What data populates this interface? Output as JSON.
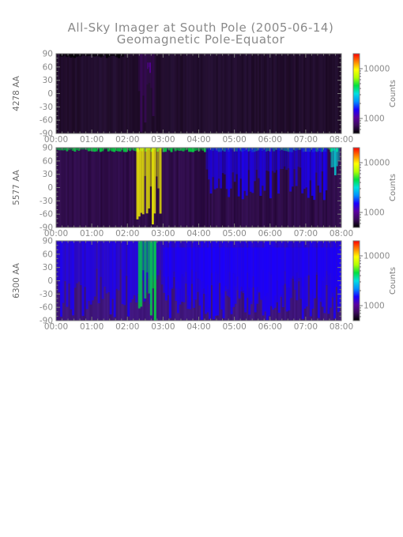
{
  "chart_data": {
    "type": "heatmap",
    "title": "All-Sky Imager at South Pole (2005-06-14)",
    "subtitle": "Geomagnetic Pole-Equator",
    "x_ticks": [
      "00:00",
      "01:00",
      "02:00",
      "03:00",
      "04:00",
      "05:00",
      "06:00",
      "07:00",
      "08:00"
    ],
    "y_ticks": [
      90,
      60,
      30,
      0,
      -30,
      -60,
      -90
    ],
    "ylim": [
      -90,
      90
    ],
    "xlim_hours": [
      0,
      8
    ],
    "colorbar": {
      "label": "Counts",
      "scale": "log",
      "ticks": [
        1000,
        10000
      ],
      "colors": [
        "#000000",
        "#3a0a5a",
        "#5a00a0",
        "#1a00ff",
        "#0090ff",
        "#00e0e0",
        "#00e040",
        "#b0ff00",
        "#ffff00",
        "#ff8000",
        "#ff0000"
      ]
    },
    "panels": [
      {
        "label": "4278 AA",
        "bg": "#1c0a24",
        "hot": "#4a2a70",
        "features": [
          {
            "t0": 2.3,
            "t1": 2.75,
            "lat0": -90,
            "lat1": 90,
            "counts": 700
          },
          {
            "t0": 2.55,
            "t1": 2.65,
            "lat0": 45,
            "lat1": 70,
            "counts": 900
          },
          {
            "t0": 0.1,
            "t1": 1.9,
            "lat0": 80,
            "lat1": 90,
            "counts": 500
          }
        ]
      },
      {
        "label": "5577 AA",
        "bg": "#26083a",
        "hot": "#6d2fb0",
        "features": [
          {
            "t0": 0.0,
            "t1": 7.9,
            "lat0": 80,
            "lat1": 90,
            "counts": 4000
          },
          {
            "t0": 2.25,
            "t1": 2.95,
            "lat0": -90,
            "lat1": 90,
            "counts": 8000
          },
          {
            "t0": 4.2,
            "t1": 7.6,
            "lat0": -30,
            "lat1": 90,
            "counts": 1500
          },
          {
            "t0": 7.7,
            "t1": 7.95,
            "lat0": 20,
            "lat1": 90,
            "counts": 3000
          }
        ]
      },
      {
        "label": "6300 AA",
        "bg": "#3a1270",
        "hot": "#6633cc",
        "features": [
          {
            "t0": 0.0,
            "t1": 8.0,
            "lat0": -90,
            "lat1": 90,
            "counts": 1500
          },
          {
            "t0": 2.3,
            "t1": 2.8,
            "lat0": -90,
            "lat1": 90,
            "counts": 4000
          },
          {
            "t0": 3.0,
            "t1": 8.0,
            "lat0": -80,
            "lat1": 75,
            "counts": 1800
          }
        ]
      }
    ]
  }
}
